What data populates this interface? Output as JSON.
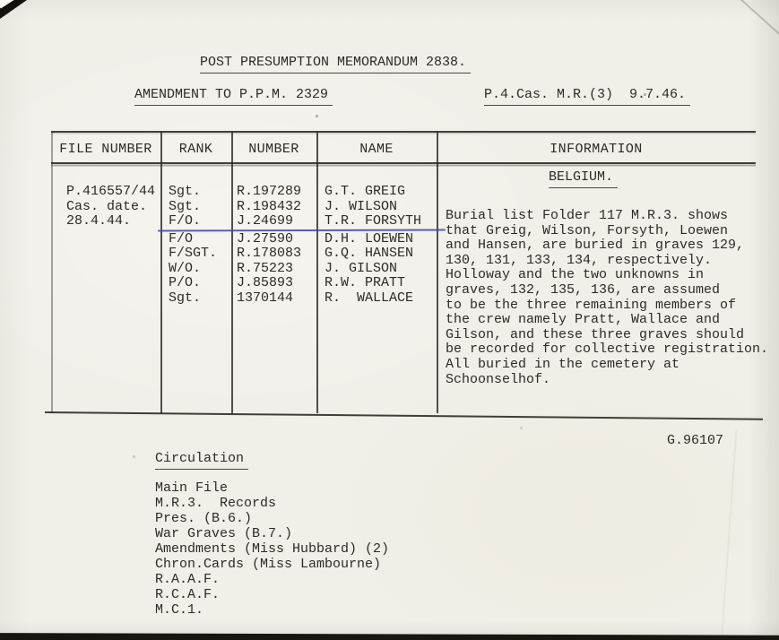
{
  "header": {
    "title": "POST PRESUMPTION MEMORANDUM 2838.",
    "amendment": "AMENDMENT TO P.P.M. 2329",
    "section_ref": "P.4.Cas. M.R.(3)  9.7.46."
  },
  "table": {
    "headers": [
      "FILE NUMBER",
      "RANK",
      "NUMBER",
      "NAME",
      "INFORMATION"
    ],
    "file_number_lines": [
      "P.416557/44",
      "Cas. date.",
      "28.4.44."
    ],
    "crew": [
      {
        "rank": "Sgt.",
        "number": "R.197289",
        "name": "G.T. GREIG"
      },
      {
        "rank": "Sgt.",
        "number": "R.198432",
        "name": "J. WILSON"
      },
      {
        "rank": "F/O.",
        "number": "J.24699",
        "name": "T.R. FORSYTH"
      },
      {
        "rank": "F/O",
        "number": "J.27590",
        "name": "D.H. LOEWEN"
      },
      {
        "rank": "F/SGT.",
        "number": "R.178083",
        "name": "G.Q. HANSEN"
      },
      {
        "rank": "W/O.",
        "number": "R.75223",
        "name": "J. GILSON"
      },
      {
        "rank": "P/O.",
        "number": "J.85893",
        "name": "R.W. PRATT"
      },
      {
        "rank": "Sgt.",
        "number": "1370144",
        "name": "R.  WALLACE"
      }
    ],
    "info_heading": "BELGIUM.",
    "info_lines": [
      "Burial list Folder 117 M.R.3. shows",
      "that Greig, Wilson, Forsyth, Loewen",
      "and Hansen, are buried in graves 129,",
      "130, 131, 133, 134, respectively.",
      "Holloway and the two unknowns in",
      "graves, 132, 135, 136, are assumed",
      "to be the three remaining members of",
      "the crew namely Pratt, Wallace and",
      "Gilson, and these three graves should",
      "be recorded for collective registration.",
      "All buried in the cemetery at",
      "Schoonselhof."
    ]
  },
  "footer": {
    "reference": "G.96107",
    "circulation_heading": "Circulation",
    "circulation_items": [
      "Main File",
      "M.R.3.  Records",
      "Pres. (B.6.)",
      "War Graves (B.7.)",
      "Amendments (Miss Hubbard) (2)",
      "Chron.Cards (Miss Lambourne)",
      "R.A.A.F.",
      "R.C.A.F.",
      "M.C.1."
    ]
  },
  "ink": {
    "annotation_blue": "#4444b8",
    "typewriter_black": "#2d2b25",
    "paper": "#f1efe8"
  }
}
